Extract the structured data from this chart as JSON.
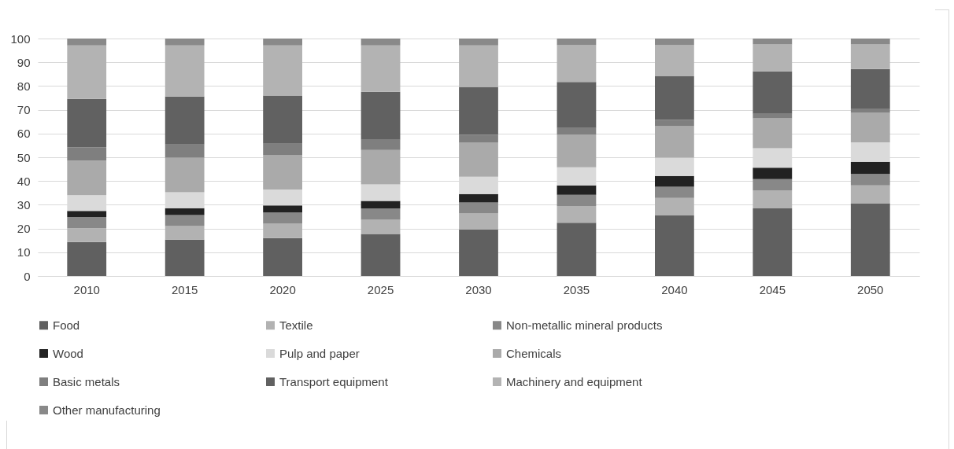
{
  "chart_data": {
    "type": "bar",
    "stacked": true,
    "categories": [
      "2010",
      "2015",
      "2020",
      "2025",
      "2030",
      "2035",
      "2040",
      "2045",
      "2050"
    ],
    "ylim": [
      0,
      100
    ],
    "yticks": [
      0,
      10,
      20,
      30,
      40,
      50,
      60,
      70,
      80,
      90,
      100
    ],
    "grid": "y",
    "legend": "bottom",
    "series": [
      {
        "name": "Food",
        "color": "#606060",
        "values": [
          14.3,
          15.3,
          16.0,
          17.7,
          19.6,
          22.4,
          25.5,
          28.5,
          30.6
        ]
      },
      {
        "name": "Textile",
        "color": "#b2b2b2",
        "values": [
          5.8,
          5.7,
          6.0,
          6.0,
          6.7,
          7.1,
          7.4,
          7.6,
          7.6
        ]
      },
      {
        "name": "Non-metallic mineral products",
        "color": "#888888",
        "values": [
          4.7,
          4.7,
          4.7,
          4.8,
          4.7,
          4.7,
          4.7,
          4.7,
          4.8
        ]
      },
      {
        "name": "Wood",
        "color": "#222222",
        "values": [
          2.6,
          2.9,
          3.0,
          3.1,
          3.5,
          4.0,
          4.5,
          4.8,
          5.1
        ]
      },
      {
        "name": "Pulp and paper",
        "color": "#dadada",
        "values": [
          6.6,
          6.7,
          6.7,
          7.0,
          7.3,
          7.6,
          7.7,
          8.2,
          8.2
        ]
      },
      {
        "name": "Chemicals",
        "color": "#aaaaaa",
        "values": [
          14.6,
          14.5,
          14.4,
          14.5,
          14.3,
          13.8,
          13.3,
          12.6,
          12.4
        ]
      },
      {
        "name": "Basic metals",
        "color": "#7f7f7f",
        "values": [
          5.6,
          5.6,
          4.9,
          4.3,
          3.3,
          2.7,
          2.6,
          1.9,
          1.6
        ]
      },
      {
        "name": "Transport equipment",
        "color": "#616161",
        "values": [
          20.4,
          20.2,
          20.3,
          20.2,
          20.2,
          19.4,
          18.4,
          17.9,
          16.9
        ]
      },
      {
        "name": "Machinery and equipment",
        "color": "#b3b3b3",
        "values": [
          22.5,
          21.5,
          21.1,
          19.5,
          17.5,
          15.5,
          13.1,
          11.3,
          10.3
        ]
      },
      {
        "name": "Other manufacturing",
        "color": "#898989",
        "values": [
          2.9,
          2.9,
          2.9,
          2.9,
          2.9,
          2.8,
          2.8,
          2.5,
          2.5
        ]
      }
    ]
  }
}
